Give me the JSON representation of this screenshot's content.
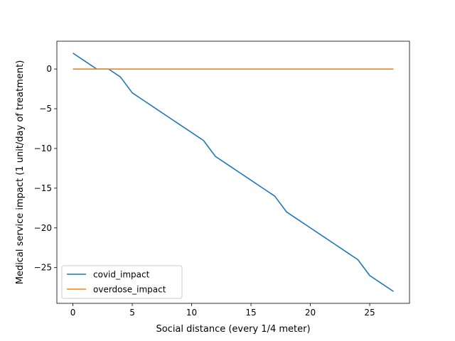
{
  "chart_data": {
    "type": "line",
    "xlabel": "Social distance (every 1/4 meter)",
    "ylabel": "Medical service impact (1 unit/day of treatment)",
    "xlim": [
      -1.35,
      28.35
    ],
    "ylim": [
      -29.5,
      3.5
    ],
    "xticks": [
      0,
      5,
      10,
      15,
      20,
      25
    ],
    "yticks": [
      0,
      -5,
      -10,
      -15,
      -20,
      -25
    ],
    "grid": false,
    "legend_position": "lower-left",
    "series": [
      {
        "name": "covid_impact",
        "color": "#1f77b4",
        "x": [
          0,
          1,
          2,
          3,
          4,
          5,
          6,
          7,
          8,
          9,
          10,
          11,
          12,
          13,
          14,
          15,
          16,
          17,
          18,
          19,
          20,
          21,
          22,
          23,
          24,
          25,
          26,
          27
        ],
        "y": [
          2,
          1,
          0,
          0,
          -1,
          -3,
          -4,
          -5,
          -6,
          -7,
          -8,
          -9,
          -11,
          -12,
          -13,
          -14,
          -15,
          -16,
          -18,
          -19,
          -20,
          -21,
          -22,
          -23,
          -24,
          -26,
          -27,
          -28
        ]
      },
      {
        "name": "overdose_impact",
        "color": "#ff7f0e",
        "x": [
          0,
          1,
          2,
          3,
          4,
          5,
          6,
          7,
          8,
          9,
          10,
          11,
          12,
          13,
          14,
          15,
          16,
          17,
          18,
          19,
          20,
          21,
          22,
          23,
          24,
          25,
          26,
          27
        ],
        "y": [
          0,
          0,
          0,
          0,
          0,
          0,
          0,
          0,
          0,
          0,
          0,
          0,
          0,
          0,
          0,
          0,
          0,
          0,
          0,
          0,
          0,
          0,
          0,
          0,
          0,
          0,
          0,
          0
        ]
      }
    ]
  }
}
